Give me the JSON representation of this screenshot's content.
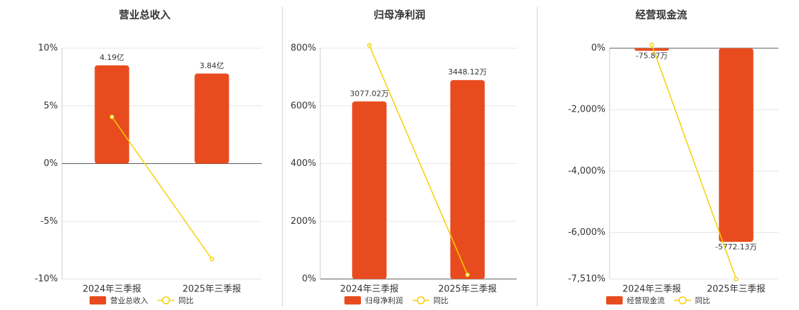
{
  "chart_data": [
    {
      "type": "bar",
      "title": "营业总收入",
      "categories": [
        "2024年三季报",
        "2025年三季报"
      ],
      "series": [
        {
          "name": "营业总收入",
          "color": "#e84c1e",
          "axis": "y2",
          "values": [
            4.19,
            3.84
          ],
          "value_labels": [
            "4.19亿",
            "3.84亿"
          ]
        },
        {
          "name": "同比",
          "color": "#f5d000",
          "type": "line",
          "values": [
            4.05,
            -8.27
          ]
        }
      ],
      "ylim": [
        -10,
        10
      ],
      "yticks": [
        {
          "value": -10,
          "label": "-10%"
        },
        {
          "value": -5,
          "label": "-5%"
        },
        {
          "value": 0,
          "label": "0%"
        },
        {
          "value": 5,
          "label": "5%"
        },
        {
          "value": 10,
          "label": "10%"
        }
      ],
      "y2lim": [
        -4.92,
        4.92
      ],
      "grid": true
    },
    {
      "type": "bar",
      "title": "归母净利润",
      "categories": [
        "2024年三季报",
        "2025年三季报"
      ],
      "series": [
        {
          "name": "归母净利润",
          "color": "#e84c1e",
          "axis": "y2",
          "values": [
            3077.02,
            3448.12
          ],
          "value_labels": [
            "3077.02万",
            "3448.12万"
          ]
        },
        {
          "name": "同比",
          "color": "#f5d000",
          "type": "line",
          "values": [
            810,
            14.5
          ]
        }
      ],
      "ylim": [
        0,
        800
      ],
      "yticks": [
        {
          "value": 0,
          "label": "0%"
        },
        {
          "value": 200,
          "label": "200%"
        },
        {
          "value": 400,
          "label": "400%"
        },
        {
          "value": 600,
          "label": "600%"
        },
        {
          "value": 800,
          "label": "800%"
        }
      ],
      "y2lim": [
        0,
        4000
      ],
      "grid": true
    },
    {
      "type": "bar",
      "title": "经营现金流",
      "categories": [
        "2024年三季报",
        "2025年三季报"
      ],
      "series": [
        {
          "name": "经营现金流",
          "color": "#e84c1e",
          "axis": "y2",
          "values": [
            -75.87,
            -5772.13
          ],
          "value_labels": [
            "-75.87万",
            "-5772.13万"
          ]
        },
        {
          "name": "同比",
          "color": "#f5d000",
          "type": "line",
          "values": [
            114,
            -7510
          ]
        }
      ],
      "ylim": [
        -7510,
        0
      ],
      "yticks": [
        {
          "value": -7510,
          "label": "-7,510%"
        },
        {
          "value": -6000,
          "label": "-6,000%"
        },
        {
          "value": -4000,
          "label": "-4,000%"
        },
        {
          "value": -2000,
          "label": "-2,000%"
        },
        {
          "value": 0,
          "label": "0%"
        }
      ],
      "y2lim": [
        -6877,
        0
      ],
      "grid": true
    }
  ]
}
